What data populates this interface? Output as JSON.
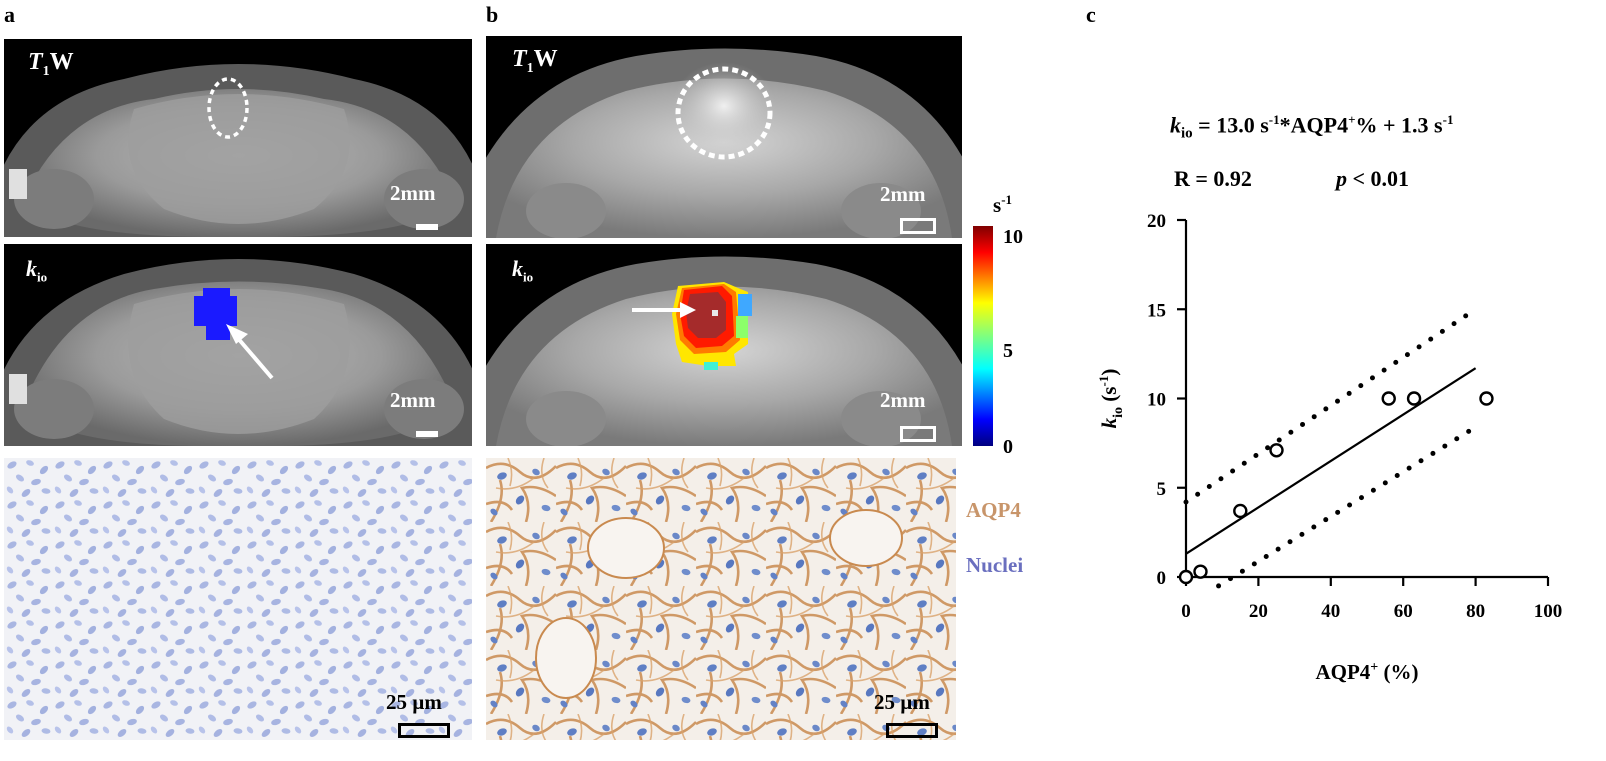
{
  "panels": {
    "a": {
      "label": "a"
    },
    "b": {
      "label": "b"
    },
    "c": {
      "label": "c"
    }
  },
  "mri": {
    "t1w_label_T": "T",
    "t1w_label_sub": "1",
    "t1w_label_W": "W",
    "kio_label_k": "k",
    "kio_label_sub": "io",
    "scalebar_label": "2mm"
  },
  "histology": {
    "scalebar_label": "25 µm",
    "legend_aqp4": "AQP4",
    "legend_nuclei": "Nuclei",
    "colors": {
      "aqp4": "#c8956a",
      "nuclei": "#6a6fbf"
    }
  },
  "colorbar": {
    "unit": "s",
    "unit_sup": "-1",
    "ticks": [
      "10",
      "5",
      "0"
    ]
  },
  "equation": {
    "k": "k",
    "sub": "io",
    "rhs_1": " = 13.0 s",
    "sup_1": "-1",
    "rhs_2": "*AQP4",
    "sup_2": "+",
    "rhs_3": "% + 1.3 s",
    "sup_3": "-1",
    "r_text": "R = 0.92",
    "p_p": "p",
    "p_rest": " < 0.01"
  },
  "chart_data": {
    "type": "scatter",
    "title": "",
    "xlabel": "AQP4⁺ (%)",
    "ylabel": "kio (s⁻¹)",
    "ylabel_k": "k",
    "ylabel_sub": "io",
    "ylabel_rest": " (s",
    "ylabel_sup": "-1",
    "ylabel_close": ")",
    "xlabel_main": "AQP4",
    "xlabel_sup": "+",
    "xlabel_rest": " (%)",
    "xlim": [
      0,
      100
    ],
    "ylim": [
      0,
      20
    ],
    "xticks": [
      0,
      20,
      40,
      60,
      80,
      100
    ],
    "yticks": [
      0,
      5,
      10,
      15,
      20
    ],
    "points": [
      {
        "x": 0,
        "y": 0
      },
      {
        "x": 4,
        "y": 0.3
      },
      {
        "x": 15,
        "y": 3.7
      },
      {
        "x": 25,
        "y": 7.1
      },
      {
        "x": 56,
        "y": 10
      },
      {
        "x": 63,
        "y": 10
      },
      {
        "x": 83,
        "y": 10
      }
    ],
    "fit": {
      "slope": 0.13,
      "intercept": 1.3,
      "x_range": [
        0,
        80
      ]
    },
    "ci_upper": {
      "x_range": [
        0,
        80
      ],
      "y_range": [
        4.2,
        15
      ]
    },
    "ci_lower": {
      "x_range": [
        9,
        80
      ],
      "y_range": [
        -0.5,
        8.4
      ]
    },
    "grid": false
  }
}
